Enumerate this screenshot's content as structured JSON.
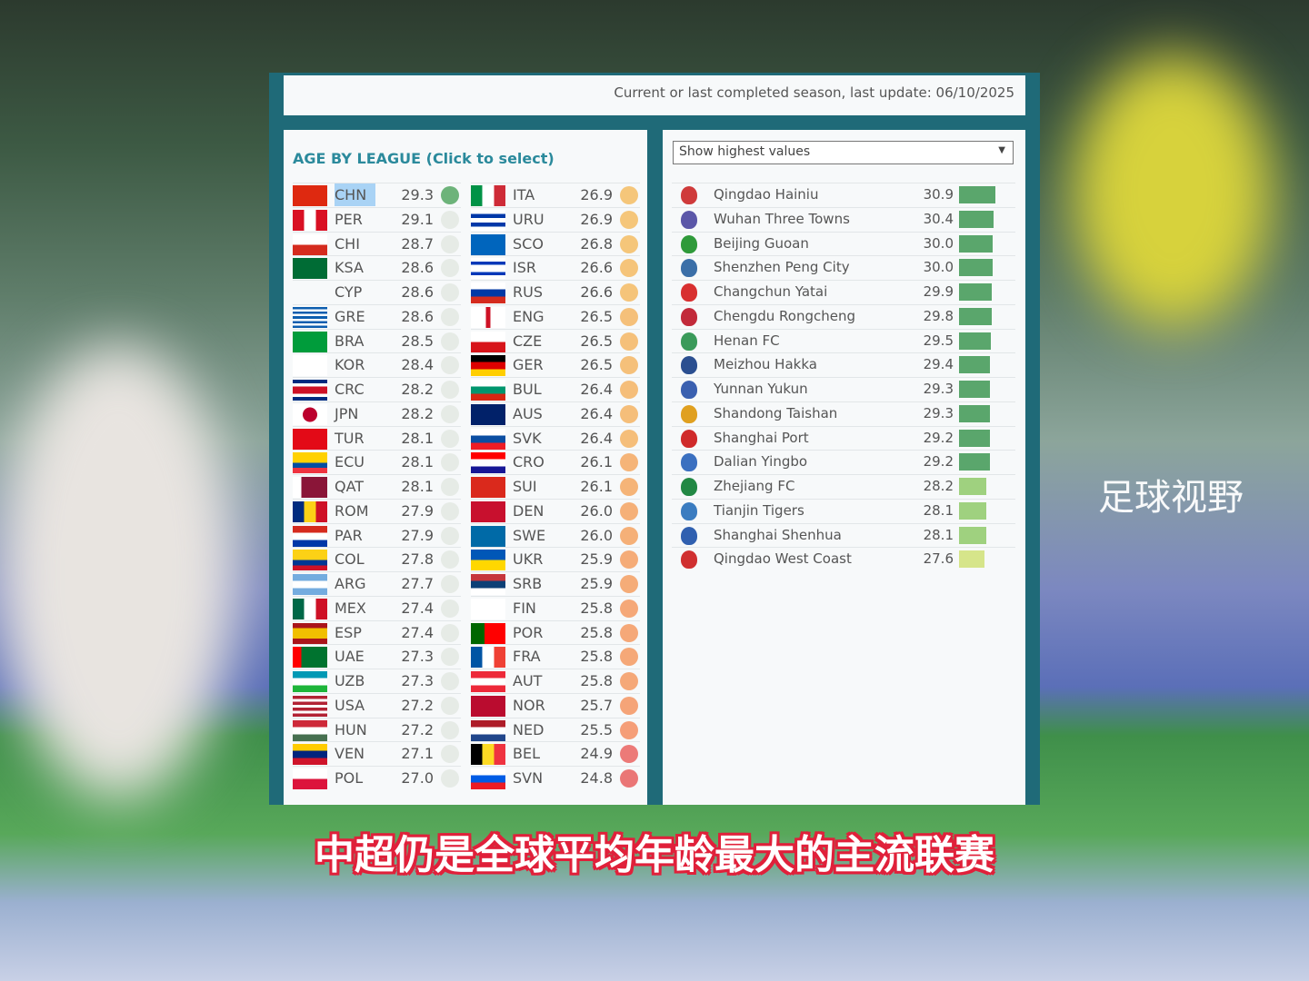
{
  "header": {
    "note": "Current or last completed season, last update: 06/10/2025"
  },
  "left": {
    "title": "AGE BY LEAGUE (Click to select)",
    "selected": "CHN",
    "col1": [
      [
        "CHN",
        "29.3"
      ],
      [
        "PER",
        "29.1"
      ],
      [
        "CHI",
        "28.7"
      ],
      [
        "KSA",
        "28.6"
      ],
      [
        "CYP",
        "28.6"
      ],
      [
        "GRE",
        "28.6"
      ],
      [
        "BRA",
        "28.5"
      ],
      [
        "KOR",
        "28.4"
      ],
      [
        "CRC",
        "28.2"
      ],
      [
        "JPN",
        "28.2"
      ],
      [
        "TUR",
        "28.1"
      ],
      [
        "ECU",
        "28.1"
      ],
      [
        "QAT",
        "28.1"
      ],
      [
        "ROM",
        "27.9"
      ],
      [
        "PAR",
        "27.9"
      ],
      [
        "COL",
        "27.8"
      ],
      [
        "ARG",
        "27.7"
      ],
      [
        "MEX",
        "27.4"
      ],
      [
        "ESP",
        "27.4"
      ],
      [
        "UAE",
        "27.3"
      ],
      [
        "UZB",
        "27.3"
      ],
      [
        "USA",
        "27.2"
      ],
      [
        "HUN",
        "27.2"
      ],
      [
        "VEN",
        "27.1"
      ],
      [
        "POL",
        "27.0"
      ]
    ],
    "col2": [
      [
        "ITA",
        "26.9"
      ],
      [
        "URU",
        "26.9"
      ],
      [
        "SCO",
        "26.8"
      ],
      [
        "ISR",
        "26.6"
      ],
      [
        "RUS",
        "26.6"
      ],
      [
        "ENG",
        "26.5"
      ],
      [
        "CZE",
        "26.5"
      ],
      [
        "GER",
        "26.5"
      ],
      [
        "BUL",
        "26.4"
      ],
      [
        "AUS",
        "26.4"
      ],
      [
        "SVK",
        "26.4"
      ],
      [
        "CRO",
        "26.1"
      ],
      [
        "SUI",
        "26.1"
      ],
      [
        "DEN",
        "26.0"
      ],
      [
        "SWE",
        "26.0"
      ],
      [
        "UKR",
        "25.9"
      ],
      [
        "SRB",
        "25.9"
      ],
      [
        "FIN",
        "25.8"
      ],
      [
        "POR",
        "25.8"
      ],
      [
        "FRA",
        "25.8"
      ],
      [
        "AUT",
        "25.8"
      ],
      [
        "NOR",
        "25.7"
      ],
      [
        "NED",
        "25.5"
      ],
      [
        "BEL",
        "24.9"
      ],
      [
        "SVN",
        "24.8"
      ]
    ]
  },
  "right": {
    "dropdown": "Show highest values",
    "teams": [
      [
        "Qingdao Hainiu",
        "30.9"
      ],
      [
        "Wuhan Three Towns",
        "30.4"
      ],
      [
        "Beijing Guoan",
        "30.0"
      ],
      [
        "Shenzhen Peng City",
        "30.0"
      ],
      [
        "Changchun Yatai",
        "29.9"
      ],
      [
        "Chengdu Rongcheng",
        "29.8"
      ],
      [
        "Henan FC",
        "29.5"
      ],
      [
        "Meizhou Hakka",
        "29.4"
      ],
      [
        "Yunnan Yukun",
        "29.3"
      ],
      [
        "Shandong Taishan",
        "29.3"
      ],
      [
        "Shanghai Port",
        "29.2"
      ],
      [
        "Dalian Yingbo",
        "29.2"
      ],
      [
        "Zhejiang FC",
        "28.2"
      ],
      [
        "Tianjin Tigers",
        "28.1"
      ],
      [
        "Shanghai Shenhua",
        "28.1"
      ],
      [
        "Qingdao West Coast",
        "27.6"
      ]
    ]
  },
  "colors": {
    "selected": "#a9d3f5",
    "dot_top": "#6db37a",
    "bar_dark": "#5aa66c",
    "bar_light": "#9fd17f",
    "bar_yellow": "#d6e58a"
  },
  "subtitle": "中超仍是全球平均年龄最大的主流联赛",
  "watermark": "足球视野"
}
